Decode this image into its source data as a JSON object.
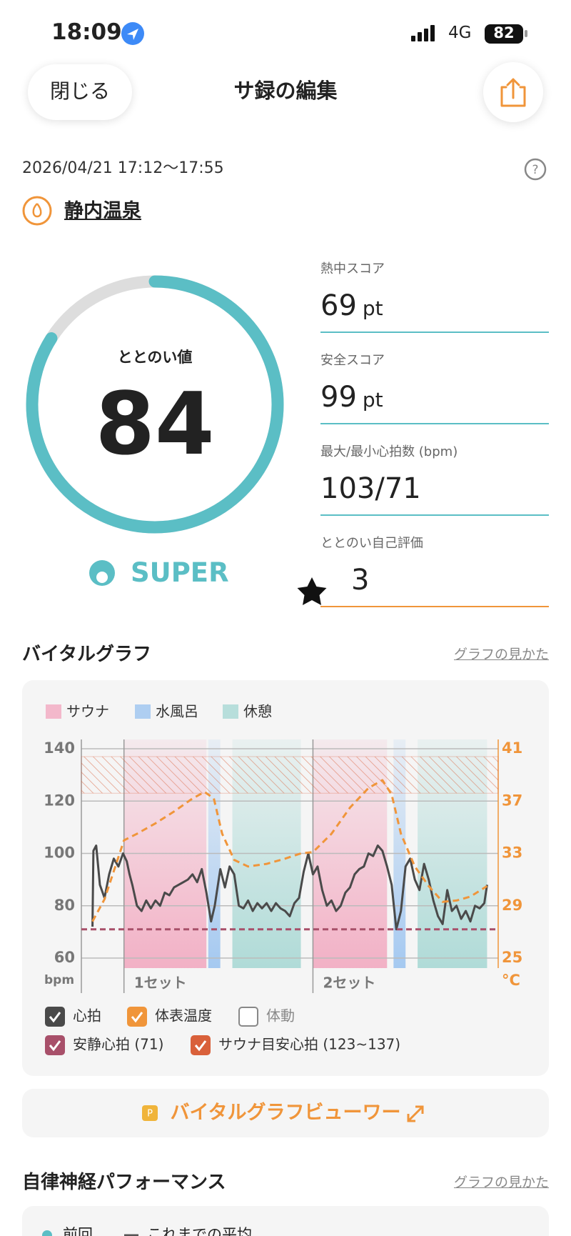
{
  "status_bar": {
    "time": "18:09",
    "network": "4G",
    "battery": "82"
  },
  "header": {
    "close": "閉じる",
    "title": "サ録の編集"
  },
  "session": {
    "datetime": "2026/04/21 17:12〜17:55",
    "facility": "静内温泉"
  },
  "totonoi": {
    "label": "ととのい値",
    "value": 84,
    "range": [
      0,
      100
    ],
    "rank": "SUPER"
  },
  "scores": [
    {
      "label": "熱中スコア",
      "value": 69,
      "unit": "pt"
    },
    {
      "label": "安全スコア",
      "value": 99,
      "unit": "pt"
    },
    {
      "label": "最大/最小心拍数 (bpm)",
      "value": "103/71"
    },
    {
      "label": "ととのい自己評価",
      "value": 3
    }
  ],
  "vital_graph": {
    "title": "バイタルグラフ",
    "help": "グラフの見かた",
    "viewer_button": "バイタルグラフビューワー",
    "chart_data": {
      "type": "line",
      "xlim": [
        0,
        45
      ],
      "ylim": [
        60,
        140
      ],
      "yticks": [
        60,
        80,
        100,
        120,
        140
      ],
      "y_label": "bpm",
      "y2lim": [
        25,
        41
      ],
      "y2ticks": [
        25,
        29,
        33,
        37,
        41
      ],
      "y2_label": "°C",
      "grid": true,
      "zones": [
        {
          "name": "サウナ",
          "color": "#f2a9c0",
          "spans": [
            [
              4.6,
              13.5
            ],
            [
              25.0,
              33.0
            ]
          ]
        },
        {
          "name": "水風呂",
          "color": "#9cc4f0",
          "spans": [
            [
              13.7,
              15.0
            ],
            [
              33.7,
              35.0
            ]
          ]
        },
        {
          "name": "休憩",
          "color": "#a8d8d4",
          "spans": [
            [
              16.3,
              23.7
            ],
            [
              36.3,
              43.8
            ]
          ]
        }
      ],
      "sets": [
        {
          "label": "1セット",
          "start": 4.6
        },
        {
          "label": "2セット",
          "start": 25.0
        }
      ],
      "series": [
        {
          "name": "心拍",
          "color": "#4a4a4a",
          "checked": true,
          "x": [
            1.2,
            1.3,
            1.6,
            2.0,
            2.5,
            3.0,
            3.5,
            4.0,
            4.5,
            4.9,
            5.2,
            5.5,
            6.0,
            6.5,
            7.0,
            7.5,
            8.0,
            8.5,
            9.0,
            9.5,
            10.0,
            10.5,
            11.0,
            11.5,
            12.0,
            12.5,
            13.0,
            13.5,
            14.0,
            14.4,
            15.0,
            15.5,
            16.0,
            16.5,
            17.0,
            17.5,
            18.0,
            18.5,
            19.0,
            19.5,
            20.0,
            20.5,
            21.0,
            21.5,
            22.0,
            22.5,
            23.0,
            23.5,
            24.0,
            24.5,
            25.0,
            25.5,
            26.0,
            26.5,
            27.0,
            27.5,
            28.0,
            28.5,
            29.0,
            29.5,
            30.0,
            30.5,
            31.0,
            31.5,
            32.0,
            32.5,
            33.0,
            33.5,
            34.0,
            34.5,
            35.0,
            35.5,
            36.0,
            36.5,
            37.0,
            37.5,
            38.0,
            38.5,
            39.0,
            39.5,
            40.0,
            40.5,
            41.0,
            41.5,
            42.0,
            42.5,
            43.0,
            43.5,
            43.8
          ],
          "values": [
            72,
            101,
            103,
            88,
            83,
            92,
            98,
            95,
            100,
            97,
            92,
            88,
            80,
            78,
            82,
            79,
            82,
            80,
            85,
            84,
            87,
            88,
            89,
            90,
            92,
            89,
            94,
            85,
            74,
            80,
            94,
            87,
            95,
            92,
            80,
            79,
            82,
            78,
            81,
            79,
            81,
            78,
            81,
            79,
            78,
            76,
            81,
            83,
            93,
            100,
            92,
            95,
            86,
            80,
            82,
            78,
            80,
            85,
            87,
            92,
            94,
            95,
            100,
            99,
            103,
            101,
            95,
            88,
            71,
            78,
            95,
            98,
            90,
            86,
            96,
            90,
            82,
            76,
            73,
            86,
            78,
            80,
            75,
            78,
            74,
            80,
            79,
            81,
            88
          ]
        },
        {
          "name": "体表温度",
          "color": "#f0953a",
          "checked": true,
          "axis": "y2",
          "x": [
            1.2,
            2.5,
            4.6,
            6.0,
            8.0,
            10.0,
            12.0,
            13.3,
            14.3,
            15.2,
            16.5,
            18.0,
            20.0,
            22.0,
            23.7,
            25.0,
            27.0,
            29.0,
            31.0,
            32.5,
            33.5,
            34.5,
            36.0,
            37.5,
            39.0,
            40.5,
            42.0,
            43.8
          ],
          "values": [
            27.8,
            29.5,
            34.0,
            34.5,
            35.3,
            36.2,
            37.2,
            37.7,
            37.2,
            34.5,
            32.5,
            32.0,
            32.2,
            32.6,
            33.0,
            33.1,
            34.5,
            36.5,
            38.0,
            38.6,
            37.5,
            34.5,
            32.0,
            30.5,
            29.3,
            29.4,
            29.7,
            30.5
          ]
        }
      ],
      "toggles": [
        {
          "label": "体動",
          "checked": false
        },
        {
          "label": "安静心拍 (71)",
          "checked": true,
          "color": "#a8506a",
          "value": 71
        },
        {
          "label": "サウナ目安心拍 (123~137)",
          "checked": true,
          "color": "#d9603a",
          "range": [
            123,
            137
          ]
        }
      ]
    }
  },
  "autonomic": {
    "title": "自律神経パフォーマンス",
    "help": "グラフの見かた",
    "legend": [
      "前回",
      "これまでの平均"
    ]
  }
}
